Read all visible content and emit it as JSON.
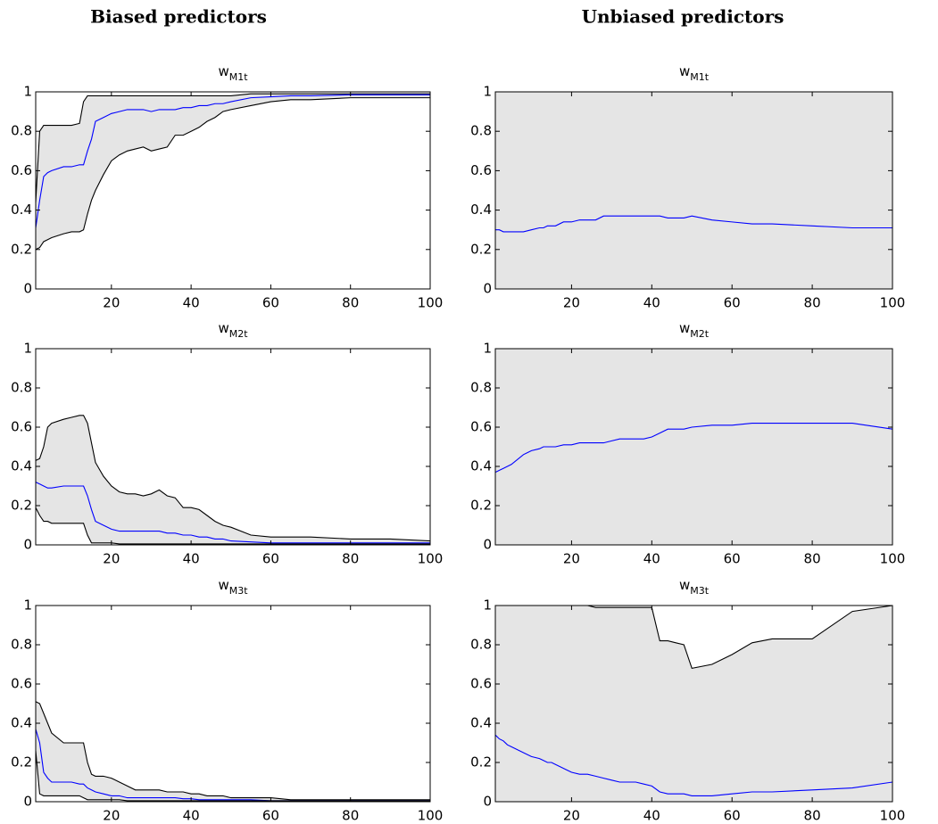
{
  "headings": [
    "Biased predictors",
    "Unbiased predictors"
  ],
  "chart_data": [
    {
      "type": "line",
      "title": "w",
      "title_sub": "M1t",
      "band_fill": "#e5e5e5",
      "x": [
        1,
        2,
        3,
        4,
        5,
        8,
        10,
        12,
        13,
        14,
        15,
        16,
        18,
        20,
        22,
        24,
        26,
        28,
        30,
        32,
        34,
        36,
        38,
        40,
        42,
        44,
        46,
        48,
        50,
        55,
        60,
        65,
        70,
        80,
        90,
        100
      ],
      "xlim": [
        1,
        100
      ],
      "xticks": [
        20,
        40,
        60,
        80,
        100
      ],
      "ylim": [
        0,
        1
      ],
      "yticks": [
        0,
        0.2,
        0.4,
        0.6,
        0.8,
        1
      ],
      "series": [
        {
          "color": "#000000",
          "values": [
            0.44,
            0.8,
            0.83,
            0.83,
            0.83,
            0.83,
            0.83,
            0.84,
            0.95,
            0.98,
            0.98,
            0.98,
            0.98,
            0.98,
            0.98,
            0.98,
            0.98,
            0.98,
            0.98,
            0.98,
            0.98,
            0.98,
            0.98,
            0.98,
            0.98,
            0.98,
            0.98,
            0.98,
            0.98,
            0.99,
            0.99,
            0.99,
            0.99,
            0.99,
            0.99,
            0.99
          ]
        },
        {
          "color": "#0000ff",
          "values": [
            0.31,
            0.45,
            0.57,
            0.59,
            0.6,
            0.62,
            0.62,
            0.63,
            0.63,
            0.7,
            0.76,
            0.85,
            0.87,
            0.89,
            0.9,
            0.91,
            0.91,
            0.91,
            0.9,
            0.91,
            0.91,
            0.91,
            0.92,
            0.92,
            0.93,
            0.93,
            0.94,
            0.94,
            0.95,
            0.97,
            0.975,
            0.98,
            0.98,
            0.985,
            0.985,
            0.985
          ]
        },
        {
          "color": "#000000",
          "values": [
            0.2,
            0.21,
            0.24,
            0.25,
            0.26,
            0.28,
            0.29,
            0.29,
            0.3,
            0.38,
            0.45,
            0.5,
            0.58,
            0.65,
            0.68,
            0.7,
            0.71,
            0.72,
            0.7,
            0.71,
            0.72,
            0.78,
            0.78,
            0.8,
            0.82,
            0.85,
            0.87,
            0.9,
            0.91,
            0.93,
            0.95,
            0.96,
            0.96,
            0.97,
            0.97,
            0.97
          ]
        }
      ]
    },
    {
      "type": "line",
      "title": "w",
      "title_sub": "M2t",
      "band_fill": "#e5e5e5",
      "x": [
        1,
        2,
        3,
        4,
        5,
        8,
        10,
        12,
        13,
        14,
        15,
        16,
        18,
        20,
        22,
        24,
        26,
        28,
        30,
        32,
        34,
        36,
        38,
        40,
        42,
        44,
        46,
        48,
        50,
        55,
        60,
        65,
        70,
        80,
        90,
        100
      ],
      "xlim": [
        1,
        100
      ],
      "xticks": [
        20,
        40,
        60,
        80,
        100
      ],
      "ylim": [
        0,
        1
      ],
      "yticks": [
        0,
        0.2,
        0.4,
        0.6,
        0.8,
        1
      ],
      "series": [
        {
          "color": "#000000",
          "values": [
            0.43,
            0.44,
            0.5,
            0.6,
            0.62,
            0.64,
            0.65,
            0.66,
            0.66,
            0.62,
            0.52,
            0.42,
            0.35,
            0.3,
            0.27,
            0.26,
            0.26,
            0.25,
            0.26,
            0.28,
            0.25,
            0.24,
            0.19,
            0.19,
            0.18,
            0.15,
            0.12,
            0.1,
            0.09,
            0.05,
            0.04,
            0.04,
            0.04,
            0.03,
            0.03,
            0.02
          ]
        },
        {
          "color": "#0000ff",
          "values": [
            0.32,
            0.31,
            0.3,
            0.29,
            0.29,
            0.3,
            0.3,
            0.3,
            0.3,
            0.25,
            0.18,
            0.12,
            0.1,
            0.08,
            0.07,
            0.07,
            0.07,
            0.07,
            0.07,
            0.07,
            0.06,
            0.06,
            0.05,
            0.05,
            0.04,
            0.04,
            0.03,
            0.03,
            0.02,
            0.015,
            0.01,
            0.01,
            0.01,
            0.01,
            0.01,
            0.01
          ]
        },
        {
          "color": "#000000",
          "values": [
            0.19,
            0.15,
            0.12,
            0.12,
            0.11,
            0.11,
            0.11,
            0.11,
            0.11,
            0.05,
            0.01,
            0.01,
            0.01,
            0.01,
            0.005,
            0.005,
            0.005,
            0.005,
            0.005,
            0.005,
            0.005,
            0.005,
            0.005,
            0.005,
            0.005,
            0.005,
            0.005,
            0.005,
            0.005,
            0.005,
            0.005,
            0.005,
            0.005,
            0.005,
            0.005,
            0.005
          ]
        }
      ]
    },
    {
      "type": "line",
      "title": "w",
      "title_sub": "M3t",
      "band_fill": "#e5e5e5",
      "x": [
        1,
        2,
        3,
        4,
        5,
        8,
        10,
        12,
        13,
        14,
        15,
        16,
        18,
        20,
        22,
        24,
        26,
        28,
        30,
        32,
        34,
        36,
        38,
        40,
        42,
        44,
        46,
        48,
        50,
        55,
        60,
        65,
        70,
        80,
        90,
        100
      ],
      "xlim": [
        1,
        100
      ],
      "xticks": [
        20,
        40,
        60,
        80,
        100
      ],
      "ylim": [
        0,
        1
      ],
      "yticks": [
        0,
        0.2,
        0.4,
        0.6,
        0.8,
        1
      ],
      "series": [
        {
          "color": "#000000",
          "values": [
            0.51,
            0.5,
            0.45,
            0.4,
            0.35,
            0.3,
            0.3,
            0.3,
            0.3,
            0.2,
            0.14,
            0.13,
            0.13,
            0.12,
            0.1,
            0.08,
            0.06,
            0.06,
            0.06,
            0.06,
            0.05,
            0.05,
            0.05,
            0.04,
            0.04,
            0.03,
            0.03,
            0.03,
            0.02,
            0.02,
            0.02,
            0.01,
            0.01,
            0.01,
            0.01,
            0.01
          ]
        },
        {
          "color": "#0000ff",
          "values": [
            0.37,
            0.3,
            0.15,
            0.12,
            0.1,
            0.1,
            0.1,
            0.09,
            0.09,
            0.07,
            0.06,
            0.05,
            0.04,
            0.03,
            0.03,
            0.02,
            0.02,
            0.02,
            0.02,
            0.02,
            0.02,
            0.02,
            0.015,
            0.015,
            0.01,
            0.01,
            0.01,
            0.01,
            0.01,
            0.01,
            0.005,
            0.005,
            0.005,
            0.005,
            0.005,
            0.005
          ]
        },
        {
          "color": "#000000",
          "values": [
            0.26,
            0.04,
            0.03,
            0.03,
            0.03,
            0.03,
            0.03,
            0.03,
            0.02,
            0.01,
            0.01,
            0.01,
            0.01,
            0.01,
            0.01,
            0.005,
            0.005,
            0.005,
            0.005,
            0.005,
            0.005,
            0.005,
            0.005,
            0.005,
            0.005,
            0.005,
            0.005,
            0.005,
            0.005,
            0.005,
            0.005,
            0.005,
            0.005,
            0.005,
            0.005,
            0.005
          ]
        }
      ]
    },
    {
      "type": "line",
      "title": "w",
      "title_sub": "M1t",
      "band_fill": "#e5e5e5",
      "x": [
        1,
        2,
        3,
        4,
        5,
        8,
        10,
        12,
        13,
        14,
        15,
        16,
        18,
        20,
        22,
        24,
        26,
        28,
        30,
        32,
        34,
        36,
        38,
        40,
        42,
        44,
        46,
        48,
        50,
        55,
        60,
        65,
        70,
        80,
        90,
        100
      ],
      "xlim": [
        1,
        100
      ],
      "xticks": [
        20,
        40,
        60,
        80,
        100
      ],
      "ylim": [
        0,
        1
      ],
      "yticks": [
        0,
        0.2,
        0.4,
        0.6,
        0.8,
        1
      ],
      "series": [
        {
          "color": "#000000",
          "values": [
            1,
            1,
            1,
            1,
            1,
            1,
            1,
            1,
            1,
            1,
            1,
            1,
            1,
            1,
            1,
            1,
            1,
            1,
            1,
            1,
            1,
            1,
            1,
            1,
            1,
            1,
            1,
            1,
            1,
            1,
            1,
            1,
            1,
            1,
            1,
            1
          ]
        },
        {
          "color": "#0000ff",
          "values": [
            0.3,
            0.3,
            0.29,
            0.29,
            0.29,
            0.29,
            0.3,
            0.31,
            0.31,
            0.32,
            0.32,
            0.32,
            0.34,
            0.34,
            0.35,
            0.35,
            0.35,
            0.37,
            0.37,
            0.37,
            0.37,
            0.37,
            0.37,
            0.37,
            0.37,
            0.36,
            0.36,
            0.36,
            0.37,
            0.35,
            0.34,
            0.33,
            0.33,
            0.32,
            0.31,
            0.31
          ]
        },
        {
          "color": "#000000",
          "values": [
            0,
            0,
            0,
            0,
            0,
            0,
            0,
            0,
            0,
            0,
            0,
            0,
            0,
            0,
            0,
            0,
            0,
            0,
            0,
            0,
            0,
            0,
            0,
            0,
            0,
            0,
            0,
            0,
            0,
            0,
            0,
            0,
            0,
            0,
            0,
            0
          ]
        }
      ]
    },
    {
      "type": "line",
      "title": "w",
      "title_sub": "M2t",
      "band_fill": "#e5e5e5",
      "x": [
        1,
        2,
        3,
        4,
        5,
        8,
        10,
        12,
        13,
        14,
        15,
        16,
        18,
        20,
        22,
        24,
        26,
        28,
        30,
        32,
        34,
        36,
        38,
        40,
        42,
        44,
        46,
        48,
        50,
        55,
        60,
        65,
        70,
        80,
        90,
        100
      ],
      "xlim": [
        1,
        100
      ],
      "xticks": [
        20,
        40,
        60,
        80,
        100
      ],
      "ylim": [
        0,
        1
      ],
      "yticks": [
        0,
        0.2,
        0.4,
        0.6,
        0.8,
        1
      ],
      "series": [
        {
          "color": "#000000",
          "values": [
            1,
            1,
            1,
            1,
            1,
            1,
            1,
            1,
            1,
            1,
            1,
            1,
            1,
            1,
            1,
            1,
            1,
            1,
            1,
            1,
            1,
            1,
            1,
            1,
            1,
            1,
            1,
            1,
            1,
            1,
            1,
            1,
            1,
            1,
            1,
            1
          ]
        },
        {
          "color": "#0000ff",
          "values": [
            0.37,
            0.38,
            0.39,
            0.4,
            0.41,
            0.46,
            0.48,
            0.49,
            0.5,
            0.5,
            0.5,
            0.5,
            0.51,
            0.51,
            0.52,
            0.52,
            0.52,
            0.52,
            0.53,
            0.54,
            0.54,
            0.54,
            0.54,
            0.55,
            0.57,
            0.59,
            0.59,
            0.59,
            0.6,
            0.61,
            0.61,
            0.62,
            0.62,
            0.62,
            0.62,
            0.59
          ]
        },
        {
          "color": "#000000",
          "values": [
            0,
            0,
            0,
            0,
            0,
            0,
            0,
            0,
            0,
            0,
            0,
            0,
            0,
            0,
            0,
            0,
            0,
            0,
            0,
            0,
            0,
            0,
            0,
            0,
            0,
            0,
            0,
            0,
            0,
            0,
            0,
            0,
            0,
            0,
            0,
            0
          ]
        }
      ]
    },
    {
      "type": "line",
      "title": "w",
      "title_sub": "M3t",
      "band_fill": "#e5e5e5",
      "x": [
        1,
        2,
        3,
        4,
        5,
        8,
        10,
        12,
        13,
        14,
        15,
        16,
        18,
        20,
        22,
        24,
        26,
        28,
        30,
        32,
        34,
        36,
        38,
        40,
        42,
        44,
        46,
        48,
        50,
        55,
        60,
        65,
        70,
        80,
        90,
        100
      ],
      "xlim": [
        1,
        100
      ],
      "xticks": [
        20,
        40,
        60,
        80,
        100
      ],
      "ylim": [
        0,
        1
      ],
      "yticks": [
        0,
        0.2,
        0.4,
        0.6,
        0.8,
        1
      ],
      "series": [
        {
          "color": "#000000",
          "values": [
            1,
            1,
            1,
            1,
            1,
            1,
            1,
            1,
            1,
            1,
            1,
            1,
            1,
            1,
            1,
            1,
            0.99,
            0.99,
            0.99,
            0.99,
            0.99,
            0.99,
            0.99,
            0.99,
            0.82,
            0.82,
            0.81,
            0.8,
            0.68,
            0.7,
            0.75,
            0.81,
            0.83,
            0.83,
            0.97,
            1
          ]
        },
        {
          "color": "#0000ff",
          "values": [
            0.34,
            0.32,
            0.31,
            0.29,
            0.28,
            0.25,
            0.23,
            0.22,
            0.21,
            0.2,
            0.2,
            0.19,
            0.17,
            0.15,
            0.14,
            0.14,
            0.13,
            0.12,
            0.11,
            0.1,
            0.1,
            0.1,
            0.09,
            0.08,
            0.05,
            0.04,
            0.04,
            0.04,
            0.03,
            0.03,
            0.04,
            0.05,
            0.05,
            0.06,
            0.07,
            0.1
          ]
        },
        {
          "color": "#000000",
          "values": [
            0,
            0,
            0,
            0,
            0,
            0,
            0,
            0,
            0,
            0,
            0,
            0,
            0,
            0,
            0,
            0,
            0,
            0,
            0,
            0,
            0,
            0,
            0,
            0,
            0,
            0,
            0,
            0,
            0,
            0,
            0,
            0,
            0,
            0,
            0,
            0
          ]
        }
      ]
    }
  ]
}
